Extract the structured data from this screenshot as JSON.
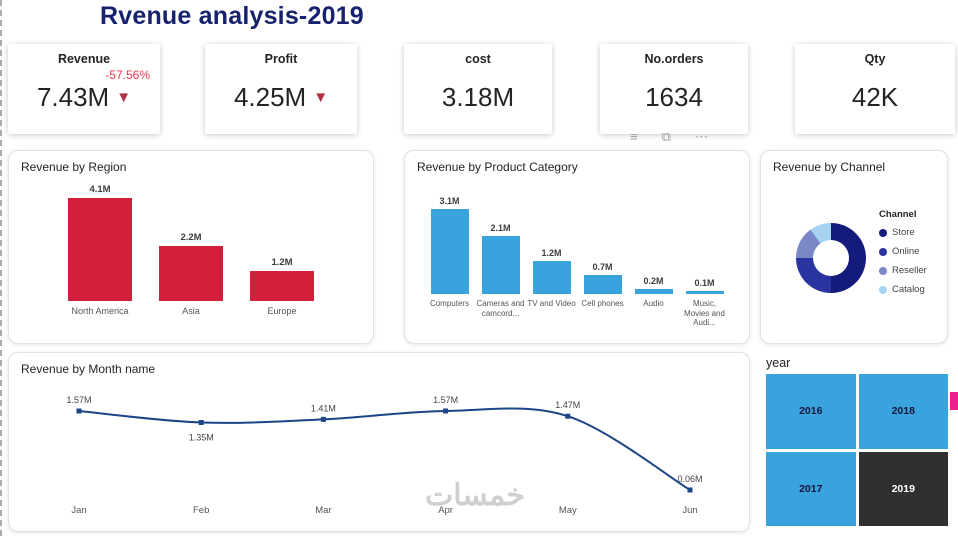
{
  "title": "Rvenue analysis-2019",
  "watermark": "خمسات",
  "icons": {
    "trend_down": "▼"
  },
  "kpis": [
    {
      "label": "Revenue",
      "value": "7.43M",
      "delta": "-57.56%",
      "trend": "down"
    },
    {
      "label": "Profit",
      "value": "4.25M",
      "trend": "down"
    },
    {
      "label": "cost",
      "value": "3.18M"
    },
    {
      "label": "No.orders",
      "value": "1634"
    },
    {
      "label": "Qty",
      "value": "42K"
    }
  ],
  "hover_toolbar": {
    "icons": [
      {
        "name": "filter-icon",
        "glyph": "≡"
      },
      {
        "name": "copy-visual-icon",
        "glyph": "⧉"
      },
      {
        "name": "more-options-icon",
        "glyph": "⋯"
      }
    ]
  },
  "chart_data": [
    {
      "type": "bar",
      "title": "Revenue by Region",
      "categories": [
        "North America",
        "Asia",
        "Europe"
      ],
      "values": [
        4.1,
        2.2,
        1.2
      ],
      "labels": [
        "4.1M",
        "2.2M",
        "1.2M"
      ],
      "color": "#d21f3b",
      "ylim": [
        0,
        4.1
      ]
    },
    {
      "type": "bar",
      "title": "Revenue by Product Category",
      "categories": [
        "Computers",
        "Cameras and camcord...",
        "TV and Video",
        "Cell phones",
        "Audio",
        "Music, Movies and Audi..."
      ],
      "values": [
        3.1,
        2.1,
        1.2,
        0.7,
        0.2,
        0.1
      ],
      "labels": [
        "3.1M",
        "2.1M",
        "1.2M",
        "0.7M",
        "0.2M",
        "0.1M"
      ],
      "color": "#38a3dc",
      "ylim": [
        0,
        3.1
      ]
    },
    {
      "type": "pie",
      "title": "Revenue by Channel",
      "legend_title": "Channel",
      "legend_position": "right",
      "slices": [
        {
          "label": "Store",
          "value": 50,
          "color": "#141b7a"
        },
        {
          "label": "Online",
          "value": 25,
          "color": "#2a34a0"
        },
        {
          "label": "Reseller",
          "value": 15,
          "color": "#7b87c6"
        },
        {
          "label": "Catalog",
          "value": 10,
          "color": "#a7d3f2"
        }
      ]
    },
    {
      "type": "line",
      "title": "Revenue by Month name",
      "categories": [
        "Jan",
        "Feb",
        "Mar",
        "Apr",
        "May",
        "Jun"
      ],
      "values": [
        1.57,
        1.35,
        1.41,
        1.57,
        1.47,
        0.06
      ],
      "labels": [
        "1.57M",
        "1.35M",
        "1.41M",
        "1.57M",
        "1.47M",
        "0.06M"
      ],
      "label_positions": [
        "above",
        "below",
        "above",
        "above",
        "above",
        "above"
      ],
      "color": "#1c4587",
      "ylim": [
        0,
        1.6
      ]
    }
  ],
  "year_slicer": {
    "label": "year",
    "options": [
      {
        "label": "2016",
        "selected": false
      },
      {
        "label": "2018",
        "selected": false
      },
      {
        "label": "2017",
        "selected": false
      },
      {
        "label": "2019",
        "selected": true
      }
    ],
    "default_color": "#38a3dc",
    "selected_color": "#303030"
  }
}
